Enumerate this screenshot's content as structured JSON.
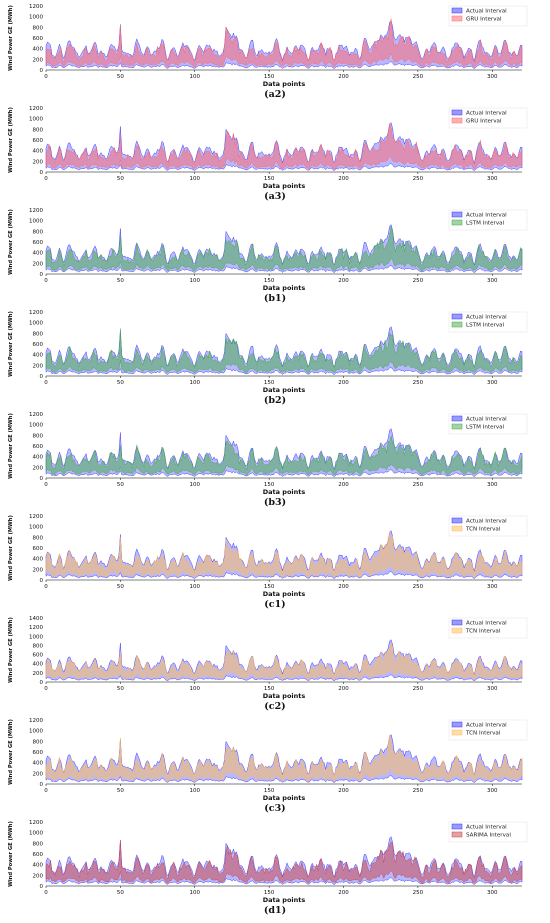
{
  "figure": {
    "x_label": "Data points",
    "y_label": "Wind Power GE (MWh)",
    "colors": {
      "actual": "#3333ff",
      "gru": "#ff6666",
      "lstm": "#44aa44",
      "tcn": "#ffbb55",
      "sarima": "#cc4444"
    }
  },
  "chart_data": [
    {
      "type": "area",
      "panel": "(a2)",
      "xlim": [
        0,
        320
      ],
      "ylim": [
        0,
        1200
      ],
      "xticks": [
        0,
        50,
        100,
        150,
        200,
        250,
        300
      ],
      "yticks": [
        0,
        200,
        400,
        600,
        800,
        1000,
        1200
      ],
      "xlabel": "Data points",
      "ylabel": "Wind Power GE (MWh)",
      "legend_position": "top-right",
      "series": [
        {
          "name": "Actual Interval",
          "color": "actual",
          "seed": 7
        },
        {
          "name": "GRU Interval",
          "color": "gru",
          "seed": 11
        }
      ]
    },
    {
      "type": "area",
      "panel": "(a3)",
      "xlim": [
        0,
        320
      ],
      "ylim": [
        0,
        1200
      ],
      "xticks": [
        0,
        50,
        100,
        150,
        200,
        250,
        300
      ],
      "yticks": [
        0,
        200,
        400,
        600,
        800,
        1000,
        1200
      ],
      "xlabel": "Data points",
      "ylabel": "Wind Power GE (MWh)",
      "legend_position": "top-right",
      "series": [
        {
          "name": "Actual Interval",
          "color": "actual",
          "seed": 7
        },
        {
          "name": "GRU Interval",
          "color": "gru",
          "seed": 13
        }
      ]
    },
    {
      "type": "area",
      "panel": "(b1)",
      "xlim": [
        0,
        320
      ],
      "ylim": [
        0,
        1200
      ],
      "xticks": [
        0,
        50,
        100,
        150,
        200,
        250,
        300
      ],
      "yticks": [
        0,
        200,
        400,
        600,
        800,
        1000,
        1200
      ],
      "xlabel": "Data points",
      "ylabel": "Wind Power GE (MWh)",
      "legend_position": "top-right",
      "series": [
        {
          "name": "Actual Interval",
          "color": "actual",
          "seed": 7
        },
        {
          "name": "LSTM Interval",
          "color": "lstm",
          "seed": 17
        }
      ]
    },
    {
      "type": "area",
      "panel": "(b2)",
      "xlim": [
        0,
        320
      ],
      "ylim": [
        0,
        1200
      ],
      "xticks": [
        0,
        50,
        100,
        150,
        200,
        250,
        300
      ],
      "yticks": [
        0,
        200,
        400,
        600,
        800,
        1000,
        1200
      ],
      "xlabel": "Data points",
      "ylabel": "Wind Power GE (MWh)",
      "legend_position": "top-right",
      "series": [
        {
          "name": "Actual Interval",
          "color": "actual",
          "seed": 7
        },
        {
          "name": "LSTM Interval",
          "color": "lstm",
          "seed": 19
        }
      ]
    },
    {
      "type": "area",
      "panel": "(b3)",
      "xlim": [
        0,
        320
      ],
      "ylim": [
        0,
        1200
      ],
      "xticks": [
        0,
        50,
        100,
        150,
        200,
        250,
        300
      ],
      "yticks": [
        0,
        200,
        400,
        600,
        800,
        1000,
        1200
      ],
      "xlabel": "Data points",
      "ylabel": "Wind Power GE (MWh)",
      "legend_position": "top-right",
      "series": [
        {
          "name": "Actual Interval",
          "color": "actual",
          "seed": 7
        },
        {
          "name": "LSTM Interval",
          "color": "lstm",
          "seed": 23
        }
      ]
    },
    {
      "type": "area",
      "panel": "(c1)",
      "xlim": [
        0,
        320
      ],
      "ylim": [
        0,
        1200
      ],
      "xticks": [
        0,
        50,
        100,
        150,
        200,
        250,
        300
      ],
      "yticks": [
        0,
        200,
        400,
        600,
        800,
        1000,
        1200
      ],
      "xlabel": "Data points",
      "ylabel": "Wind Power GE (MWh)",
      "legend_position": "top-right",
      "series": [
        {
          "name": "Actual Interval",
          "color": "actual",
          "seed": 7
        },
        {
          "name": "TCN Interval",
          "color": "tcn",
          "seed": 29
        }
      ]
    },
    {
      "type": "area",
      "panel": "(c2)",
      "xlim": [
        0,
        320
      ],
      "ylim": [
        0,
        1400
      ],
      "xticks": [
        0,
        50,
        100,
        150,
        200,
        250,
        300
      ],
      "yticks": [
        0,
        200,
        400,
        600,
        800,
        1000,
        1200,
        1400
      ],
      "xlabel": "Data points",
      "ylabel": "Wind Power GE (MWh)",
      "legend_position": "top-right",
      "series": [
        {
          "name": "Actual Interval",
          "color": "actual",
          "seed": 7
        },
        {
          "name": "TCN Interval",
          "color": "tcn",
          "seed": 31
        }
      ]
    },
    {
      "type": "area",
      "panel": "(c3)",
      "xlim": [
        0,
        320
      ],
      "ylim": [
        0,
        1200
      ],
      "xticks": [
        0,
        50,
        100,
        150,
        200,
        250,
        300
      ],
      "yticks": [
        0,
        200,
        400,
        600,
        800,
        1000,
        1200
      ],
      "xlabel": "Data points",
      "ylabel": "Wind Power GE (MWh)",
      "legend_position": "top-right",
      "series": [
        {
          "name": "Actual Interval",
          "color": "actual",
          "seed": 7
        },
        {
          "name": "TCN Interval",
          "color": "tcn",
          "seed": 37
        }
      ]
    },
    {
      "type": "area",
      "panel": "(d1)",
      "xlim": [
        0,
        320
      ],
      "ylim": [
        0,
        1200
      ],
      "xticks": [
        0,
        50,
        100,
        150,
        200,
        250,
        300
      ],
      "yticks": [
        0,
        200,
        400,
        600,
        800,
        1000,
        1200
      ],
      "xlabel": "Data points",
      "ylabel": "Wind Power GE (MWh)",
      "legend_position": "top-right",
      "series": [
        {
          "name": "Actual Interval",
          "color": "actual",
          "seed": 7
        },
        {
          "name": "SARIMA Interval",
          "color": "sarima",
          "seed": 41
        }
      ]
    }
  ]
}
